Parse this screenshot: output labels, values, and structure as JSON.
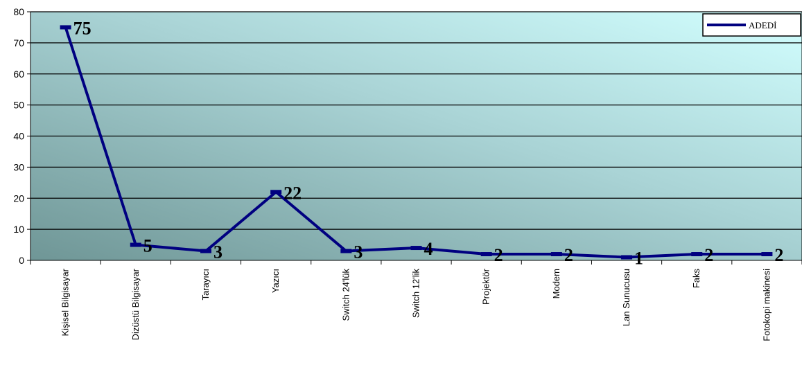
{
  "chart_data": {
    "type": "line",
    "categories": [
      "Kişisel Bilgisayar",
      "Dizüstü Bilgisayar",
      "Tarayıcı",
      "Yazıcı",
      "Switch 24'lük",
      "Switch 12'lik",
      "Projektör",
      "Modem",
      "Lan Sunucusu",
      "Faks",
      "Fotokopi makinesi"
    ],
    "series": [
      {
        "name": "ADEDİ",
        "values": [
          75,
          5,
          3,
          22,
          3,
          4,
          2,
          2,
          1,
          2,
          2
        ],
        "color": "#000080"
      }
    ],
    "data_labels": [
      "75",
      "5",
      "3",
      "22",
      "3",
      "4",
      "2",
      "2",
      "1",
      "2",
      "2"
    ],
    "yticks": [
      "0",
      "10",
      "20",
      "30",
      "40",
      "50",
      "60",
      "70",
      "80"
    ],
    "ylim": [
      0,
      80
    ],
    "grid": true,
    "legend_position": "top-right",
    "title": "",
    "xlabel": "",
    "ylabel": ""
  }
}
